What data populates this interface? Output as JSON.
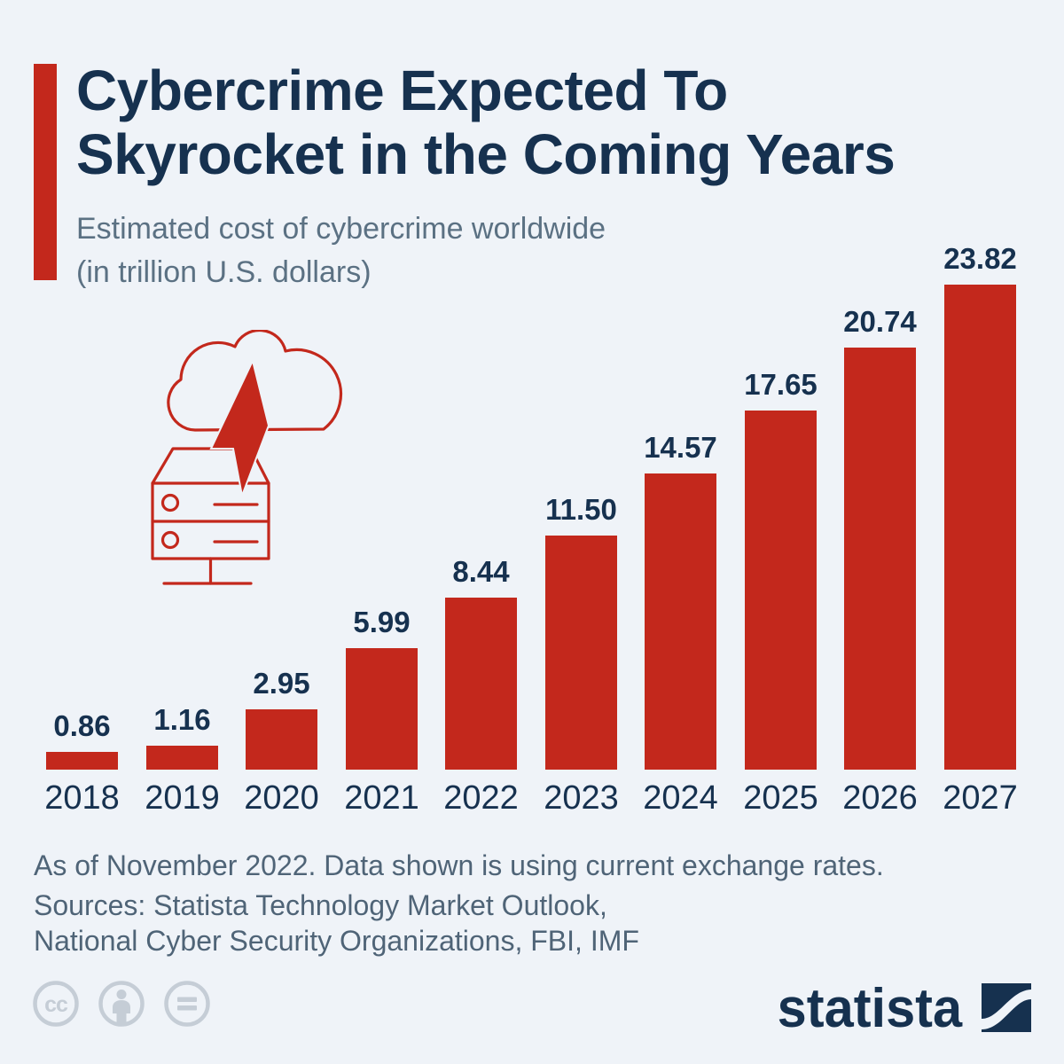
{
  "palette": {
    "background": "#eff3f8",
    "navy": "#16314f",
    "red": "#c3281c",
    "subtitle_gray": "#5b7183",
    "footer_gray": "#4f6477",
    "license_gray": "#c5cdd6"
  },
  "header": {
    "title_line1": "Cybercrime Expected To",
    "title_line2": "Skyrocket in the Coming Years",
    "subtitle_line1": "Estimated cost of cybercrime worldwide",
    "subtitle_line2": "(in trillion U.S. dollars)"
  },
  "hero_icon": "cloud-lightning-server-icon",
  "chart_data": {
    "type": "bar",
    "title": "Cybercrime Expected To Skyrocket in the Coming Years",
    "subtitle": "Estimated cost of cybercrime worldwide (in trillion U.S. dollars)",
    "categories": [
      "2018",
      "2019",
      "2020",
      "2021",
      "2022",
      "2023",
      "2024",
      "2025",
      "2026",
      "2027"
    ],
    "values": [
      0.86,
      1.16,
      2.95,
      5.99,
      8.44,
      11.5,
      14.57,
      17.65,
      20.74,
      23.82
    ],
    "unit": "trillion U.S. dollars",
    "bar_color": "#c3281c",
    "ylim": [
      0,
      23.82
    ],
    "grid": false,
    "legend": "none",
    "value_labels": "above bars, two decimals",
    "xlabel": "",
    "ylabel": ""
  },
  "footer": {
    "note": "As of November 2022. Data shown is using current exchange rates.",
    "sources_line1": "Sources: Statista Technology Market Outlook,",
    "sources_line2": "National Cyber Security Organizations, FBI, IMF"
  },
  "branding": {
    "logo_text": "statista",
    "license_icons": [
      "cc-icon",
      "attribution-person-icon",
      "equals-icon"
    ]
  }
}
